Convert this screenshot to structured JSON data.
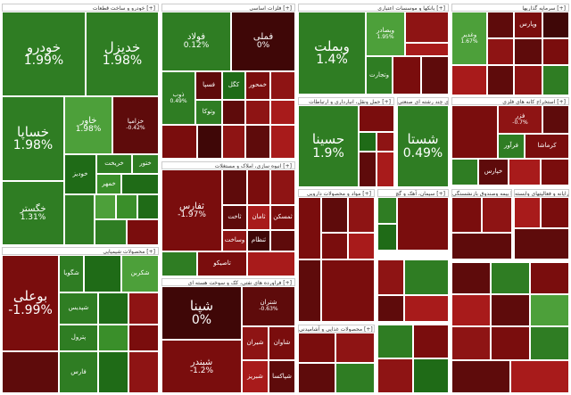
{
  "sectors": {
    "auto": "خودرو و ساخت قطعات [+]",
    "metals": "فلزات اساسی [+]",
    "banks": "بانکها و موسسات اعتباری [+]",
    "investment": "سرمایه گذاریها [+]",
    "oil": "فراورده های نفتی، کک و سوخت هسته ای [+]",
    "chemical": "محصولات شیمیایی [+]",
    "holding": "انبوه سازی، املاک و مستغلات [+]",
    "cement": "سیمان، آهک و گچ [+]",
    "food": "محصولات غذایی و آشامیدنی [+]",
    "transport": "حمل ونقل، انبارداری و ارتباطات [+]",
    "telecom": "شرکتهای چند رشته ای صنعتی [+]",
    "pharma": "مواد و محصولات دارویی [+]",
    "mining": "استخراج کانه های فلزی [+]",
    "equip": "رایانه و فعالیتهای وابسته [+]",
    "insurance": "بیمه وصندوق بازنشستگی [+]"
  },
  "tiles": [
    {
      "name": "خودرو",
      "pct": "1.99%"
    },
    {
      "name": "خدیزل",
      "pct": "1.98%"
    },
    {
      "name": "خساپا",
      "pct": "1.98%"
    },
    {
      "name": "خاور",
      "pct": "1.98%"
    },
    {
      "name": "خزامیا",
      "pct": "-0.42%"
    },
    {
      "name": "خگستر",
      "pct": "1.31%"
    },
    {
      "name": "فولاد",
      "pct": "0.12%"
    },
    {
      "name": "فملی",
      "pct": "0%"
    },
    {
      "name": "وبملت",
      "pct": "1.4%"
    },
    {
      "name": "حسینا",
      "pct": "1.9%"
    },
    {
      "name": "شستا",
      "pct": "0.49%"
    },
    {
      "name": "ثفارس",
      "pct": "-1.97%"
    },
    {
      "name": "بوعلی",
      "pct": "-1.99%"
    },
    {
      "name": "شپنا",
      "pct": "0%"
    },
    {
      "name": "شبندر",
      "pct": "-1.2%"
    },
    {
      "name": "شتران",
      "pct": "-0.63%"
    },
    {
      "name": "وبصادر",
      "pct": "1.95%"
    },
    {
      "name": "وتجارت",
      "pct": ""
    },
    {
      "name": "فرآور",
      "pct": ""
    },
    {
      "name": "کرماشا",
      "pct": ""
    },
    {
      "name": "فزر",
      "pct": "-0.7%"
    },
    {
      "name": "خپارس",
      "pct": ""
    },
    {
      "name": "ذوب",
      "pct": "0.49%"
    },
    {
      "name": "فسپا",
      "pct": ""
    },
    {
      "name": "کگل",
      "pct": ""
    },
    {
      "name": "خمحور",
      "pct": ""
    },
    {
      "name": "وغدیر",
      "pct": "1.67%"
    },
    {
      "name": "وپارس",
      "pct": ""
    },
    {
      "name": "خودیز",
      "pct": ""
    },
    {
      "name": "خریخت",
      "pct": ""
    },
    {
      "name": "ختور",
      "pct": ""
    },
    {
      "name": "خمهر",
      "pct": ""
    },
    {
      "name": "تاصیکو",
      "pct": ""
    },
    {
      "name": "ثاخت",
      "pct": ""
    },
    {
      "name": "ثامان",
      "pct": ""
    },
    {
      "name": "وساخت",
      "pct": ""
    },
    {
      "name": "ثمسکن",
      "pct": ""
    },
    {
      "name": "ثنظام",
      "pct": ""
    },
    {
      "name": "شیران",
      "pct": ""
    },
    {
      "name": "شبریز",
      "pct": ""
    },
    {
      "name": "شپاکسا",
      "pct": ""
    },
    {
      "name": "شاوان",
      "pct": ""
    },
    {
      "name": "شگویا",
      "pct": ""
    },
    {
      "name": "شکربن",
      "pct": ""
    },
    {
      "name": "شپدیس",
      "pct": ""
    },
    {
      "name": "پترول",
      "pct": ""
    },
    {
      "name": "فارس",
      "pct": ""
    },
    {
      "name": "وتوکا",
      "pct": ""
    }
  ]
}
